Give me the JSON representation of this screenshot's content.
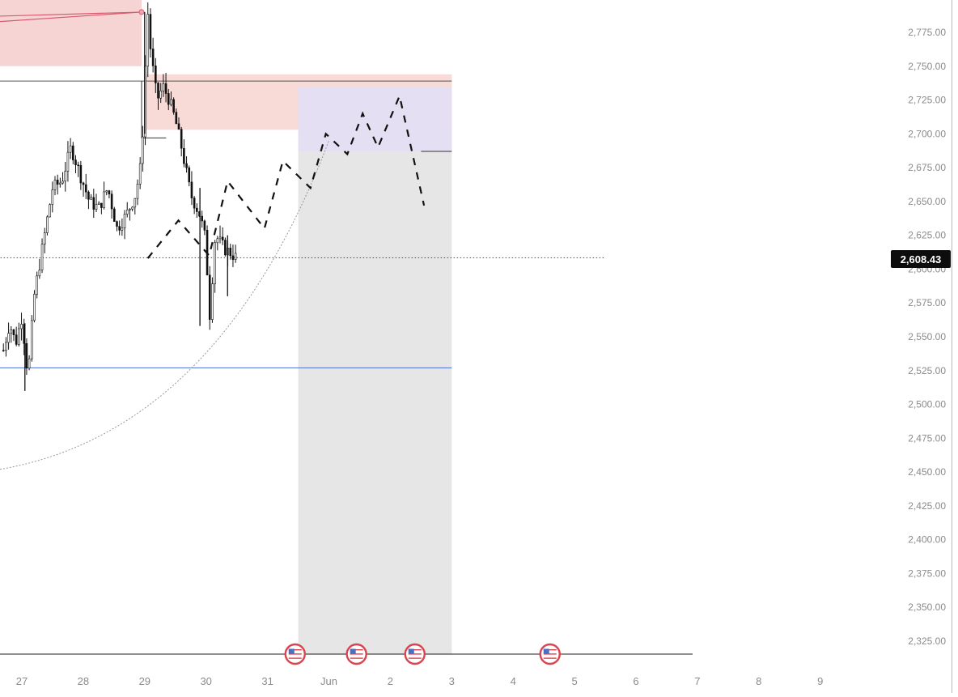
{
  "chart_data": {
    "type": "candlestick",
    "title": "",
    "xlabel": "",
    "ylabel": "",
    "x_ticks": [
      "27",
      "28",
      "29",
      "30",
      "31",
      "Jun",
      "2",
      "3",
      "4",
      "5",
      "6",
      "7",
      "8",
      "9"
    ],
    "y_ticks": [
      2775,
      2750,
      2725,
      2700,
      2675,
      2650,
      2625,
      2600,
      2575,
      2550,
      2525,
      2500,
      2475,
      2450,
      2425,
      2400,
      2375,
      2350,
      2325
    ],
    "y_tick_labels": [
      "2,775.00",
      "2,750.00",
      "2,725.00",
      "2,700.00",
      "2,675.00",
      "2,650.00",
      "2,625.00",
      "2,600.00",
      "2,575.00",
      "2,550.00",
      "2,525.00",
      "2,500.00",
      "2,475.00",
      "2,450.00",
      "2,425.00",
      "2,400.00",
      "2,375.00",
      "2,350.00",
      "2,325.00"
    ],
    "ylim": [
      2312,
      2800
    ],
    "current_price": 2608.43,
    "current_price_label": "2,608.43",
    "price_path_days": [
      26.7,
      26.8,
      26.9,
      27.0,
      27.1,
      27.2,
      27.35,
      27.5,
      27.65,
      27.8,
      27.95,
      28.1,
      28.25,
      28.4,
      28.55,
      28.7,
      28.85,
      28.95,
      29.0,
      29.05,
      29.1,
      29.2,
      29.3,
      29.4,
      29.5,
      29.6,
      29.75,
      29.9,
      30.0,
      30.05,
      30.15,
      30.3,
      30.4,
      30.5
    ],
    "price_path_values": [
      2540,
      2560,
      2545,
      2565,
      2520,
      2580,
      2620,
      2660,
      2665,
      2690,
      2670,
      2650,
      2645,
      2660,
      2630,
      2640,
      2655,
      2680,
      2740,
      2790,
      2760,
      2725,
      2735,
      2725,
      2710,
      2690,
      2655,
      2640,
      2620,
      2560,
      2625,
      2615,
      2612,
      2608
    ],
    "horizontal_lines": [
      {
        "name": "resistance",
        "value": 2739,
        "color": "#555555",
        "x_from": 26.6,
        "x_to": 34.0
      },
      {
        "name": "target",
        "value": 2687,
        "color": "#333333",
        "x_from": 33.5,
        "x_to": 34.0
      },
      {
        "name": "support",
        "value": 2527,
        "color": "#4a6fd6",
        "x_from": 26.6,
        "x_to": 34.0
      },
      {
        "name": "current",
        "value": 2608.43,
        "color": "#444444",
        "x_from": 26.6,
        "x_to": 36.5,
        "dotted": true
      }
    ],
    "zones": [
      {
        "name": "upper-supply-zone",
        "x_from": 26.6,
        "x_to": 28.95,
        "y_low": 2750,
        "y_high": 2800,
        "color": "#f7d4d4"
      },
      {
        "name": "supply-zone",
        "x_from": 29.0,
        "x_to": 34.0,
        "y_low": 2703,
        "y_high": 2744,
        "color": "#f8dad6"
      },
      {
        "name": "projection-box",
        "x_from": 31.5,
        "x_to": 34.0,
        "y_low": 2315,
        "y_high": 2735,
        "color": "#e6e6e6"
      },
      {
        "name": "stop-box",
        "x_from": 31.5,
        "x_to": 34.0,
        "y_low": 2687,
        "y_high": 2735,
        "color": "#e4def5"
      }
    ],
    "projection_path_days": [
      29.05,
      29.55,
      30.05,
      30.35,
      30.95,
      31.25,
      31.7,
      31.95,
      32.3,
      32.55,
      32.8,
      33.15,
      33.55
    ],
    "projection_path_values": [
      2608,
      2636,
      2610,
      2665,
      2630,
      2680,
      2660,
      2700,
      2685,
      2715,
      2690,
      2728,
      2647
    ],
    "event_markers": [
      31.45,
      32.45,
      33.4,
      35.6
    ],
    "event_icon": "us-flag-icon",
    "colors": {
      "candle": "#111111",
      "zone_red": "#f7d4d4",
      "zone_border": "#d95a6e",
      "support_line": "#4a6fd6",
      "grey_box": "#e6e6e6",
      "purple_box": "#e4def5",
      "axis_text": "#8a8a8a"
    }
  }
}
